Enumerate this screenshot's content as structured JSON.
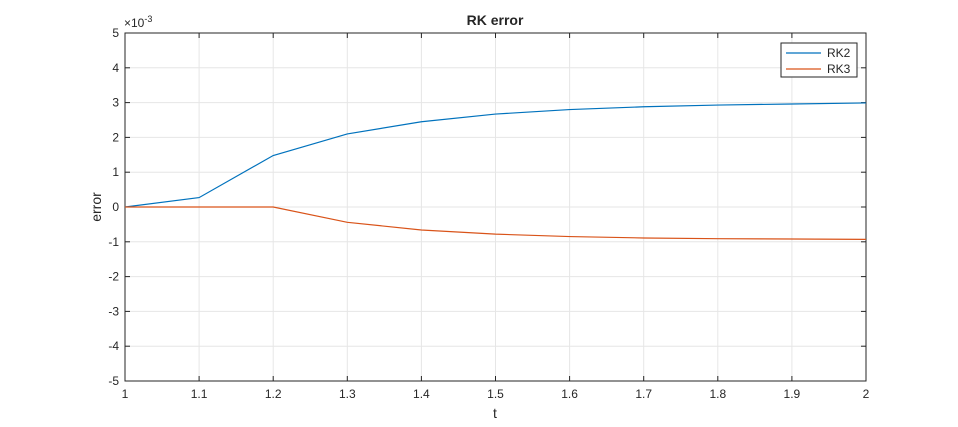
{
  "chart_data": {
    "type": "line",
    "title": "RK error",
    "xlabel": "t",
    "ylabel": "error",
    "exponent_label": "×10",
    "exponent_power": "-3",
    "xlim": [
      1,
      2
    ],
    "ylim": [
      -5,
      5
    ],
    "x_ticks": [
      "1",
      "1.1",
      "1.2",
      "1.3",
      "1.4",
      "1.5",
      "1.6",
      "1.7",
      "1.8",
      "1.9",
      "2"
    ],
    "y_ticks": [
      "5",
      "4",
      "3",
      "2",
      "1",
      "0",
      "-1",
      "-2",
      "-3",
      "-4",
      "-5"
    ],
    "y_scale_factor": 0.001,
    "grid": true,
    "legend_position": "top-right",
    "x": [
      1.0,
      1.1,
      1.2,
      1.3,
      1.4,
      1.5,
      1.6,
      1.7,
      1.8,
      1.9,
      2.0
    ],
    "series": [
      {
        "name": "RK2",
        "color": "#0072BD",
        "values": [
          0.0,
          0.27,
          1.48,
          2.1,
          2.45,
          2.67,
          2.8,
          2.88,
          2.93,
          2.96,
          2.99
        ]
      },
      {
        "name": "RK3",
        "color": "#D95319",
        "values": [
          0.0,
          0.0,
          0.0,
          -0.44,
          -0.66,
          -0.78,
          -0.85,
          -0.89,
          -0.91,
          -0.92,
          -0.93
        ]
      }
    ]
  }
}
